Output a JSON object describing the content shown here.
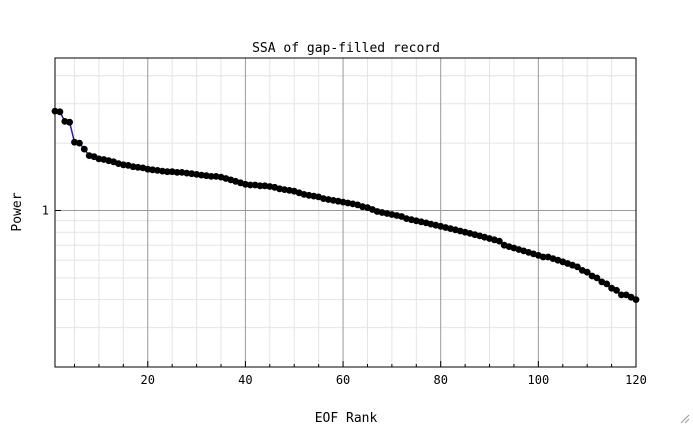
{
  "chart_data": {
    "type": "line",
    "title": "SSA of gap-filled record",
    "xlabel": "EOF Rank",
    "ylabel": "Power",
    "x_scale": "linear",
    "y_scale": "log",
    "xlim": [
      1,
      120
    ],
    "ylim": [
      0.2,
      4.8
    ],
    "x_ticks": [
      20,
      40,
      60,
      80,
      100,
      120
    ],
    "x_tick_labels": [
      "20",
      "40",
      "60",
      "80",
      "100",
      "120"
    ],
    "y_ticks": [
      1
    ],
    "y_tick_labels": [
      "1"
    ],
    "grid": true,
    "legend": "none",
    "series": [
      {
        "line_color": "#2a1aa8",
        "marker_color": "#000000",
        "x": [
          1,
          2,
          3,
          4,
          5,
          6,
          7,
          8,
          9,
          10,
          11,
          12,
          13,
          14,
          15,
          16,
          17,
          18,
          19,
          20,
          21,
          22,
          23,
          24,
          25,
          26,
          27,
          28,
          29,
          30,
          31,
          32,
          33,
          34,
          35,
          36,
          37,
          38,
          39,
          40,
          41,
          42,
          43,
          44,
          45,
          46,
          47,
          48,
          49,
          50,
          51,
          52,
          53,
          54,
          55,
          56,
          57,
          58,
          59,
          60,
          61,
          62,
          63,
          64,
          65,
          66,
          67,
          68,
          69,
          70,
          71,
          72,
          73,
          74,
          75,
          76,
          77,
          78,
          79,
          80,
          81,
          82,
          83,
          84,
          85,
          86,
          87,
          88,
          89,
          90,
          91,
          92,
          93,
          94,
          95,
          96,
          97,
          98,
          99,
          100,
          101,
          102,
          103,
          104,
          105,
          106,
          107,
          108,
          109,
          110,
          111,
          112,
          113,
          114,
          115,
          116,
          117,
          118,
          119,
          120
        ],
        "y": [
          2.78,
          2.76,
          2.5,
          2.48,
          2.02,
          2.0,
          1.88,
          1.76,
          1.74,
          1.7,
          1.69,
          1.67,
          1.65,
          1.62,
          1.6,
          1.59,
          1.57,
          1.56,
          1.55,
          1.53,
          1.52,
          1.51,
          1.5,
          1.49,
          1.49,
          1.48,
          1.48,
          1.47,
          1.46,
          1.45,
          1.44,
          1.43,
          1.42,
          1.42,
          1.41,
          1.39,
          1.37,
          1.35,
          1.33,
          1.31,
          1.3,
          1.3,
          1.29,
          1.29,
          1.28,
          1.27,
          1.25,
          1.24,
          1.23,
          1.22,
          1.2,
          1.18,
          1.17,
          1.16,
          1.15,
          1.13,
          1.12,
          1.11,
          1.1,
          1.09,
          1.08,
          1.07,
          1.06,
          1.04,
          1.03,
          1.01,
          0.99,
          0.98,
          0.97,
          0.96,
          0.95,
          0.94,
          0.92,
          0.91,
          0.9,
          0.89,
          0.88,
          0.87,
          0.86,
          0.85,
          0.84,
          0.83,
          0.82,
          0.81,
          0.8,
          0.79,
          0.78,
          0.77,
          0.76,
          0.75,
          0.74,
          0.73,
          0.7,
          0.69,
          0.68,
          0.67,
          0.66,
          0.65,
          0.64,
          0.63,
          0.62,
          0.62,
          0.61,
          0.6,
          0.59,
          0.58,
          0.57,
          0.56,
          0.54,
          0.53,
          0.51,
          0.5,
          0.48,
          0.47,
          0.45,
          0.44,
          0.42,
          0.42,
          0.41,
          0.4
        ]
      }
    ]
  }
}
